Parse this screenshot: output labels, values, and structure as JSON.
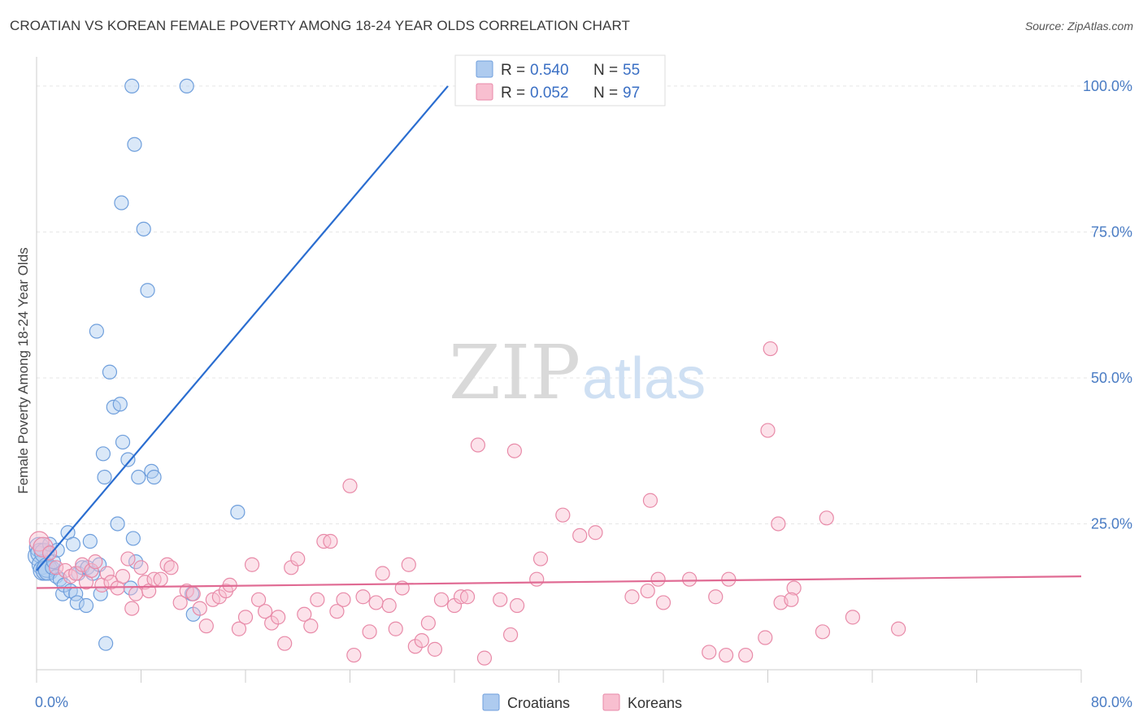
{
  "title": "CROATIAN VS KOREAN FEMALE POVERTY AMONG 18-24 YEAR OLDS CORRELATION CHART",
  "source": "Source: ZipAtlas.com",
  "watermark": {
    "zip": "ZIP",
    "atlas": "atlas"
  },
  "legend_top": {
    "croatians": {
      "r_label": "R = ",
      "r_value": "0.540",
      "n_label": "N = ",
      "n_value": "55"
    },
    "koreans": {
      "r_label": "R = ",
      "r_value": "0.052",
      "n_label": "N = ",
      "n_value": "97"
    }
  },
  "colors": {
    "croatians_fill": "#aecbef",
    "croatians_stroke": "#6f9fdc",
    "croatians_line": "#2a6dd0",
    "koreans_fill": "#f8bfd0",
    "koreans_stroke": "#e88aa8",
    "koreans_line": "#e06a93",
    "grid": "#e6e6e6",
    "tick_label": "#4a7cc4"
  },
  "chart_data": {
    "type": "scatter",
    "title": "CROATIAN VS KOREAN FEMALE POVERTY AMONG 18-24 YEAR OLDS CORRELATION CHART",
    "xlabel": "",
    "ylabel": "Female Poverty Among 18-24 Year Olds",
    "xlim": [
      0,
      80
    ],
    "ylim": [
      0,
      105
    ],
    "x_tick_labels": [
      "0.0%",
      "80.0%"
    ],
    "y_ticks": [
      25,
      50,
      75,
      100
    ],
    "y_tick_labels": [
      "25.0%",
      "50.0%",
      "75.0%",
      "100.0%"
    ],
    "grid": true,
    "legend_placement": "bottom-center",
    "series": [
      {
        "name": "Croatians",
        "trend": {
          "x": [
            0,
            31.5
          ],
          "y": [
            17,
            100
          ]
        },
        "points": [
          [
            0.1,
            19.5
          ],
          [
            0.2,
            21
          ],
          [
            0.3,
            20
          ],
          [
            0.4,
            18
          ],
          [
            0.5,
            17
          ],
          [
            0.6,
            20
          ],
          [
            0.7,
            17
          ],
          [
            0.8,
            17.5
          ],
          [
            0.9,
            17
          ],
          [
            1.0,
            21.5
          ],
          [
            1.2,
            17.5
          ],
          [
            1.3,
            18.5
          ],
          [
            1.5,
            16
          ],
          [
            1.6,
            20.5
          ],
          [
            1.8,
            15.5
          ],
          [
            2.0,
            13
          ],
          [
            2.1,
            14.5
          ],
          [
            2.4,
            23.5
          ],
          [
            2.6,
            13.5
          ],
          [
            2.8,
            21.5
          ],
          [
            3.0,
            13
          ],
          [
            3.1,
            11.5
          ],
          [
            3.2,
            16.5
          ],
          [
            3.5,
            17.5
          ],
          [
            3.8,
            11
          ],
          [
            3.9,
            17.5
          ],
          [
            4.1,
            22
          ],
          [
            4.3,
            16.5
          ],
          [
            4.6,
            58
          ],
          [
            4.8,
            18
          ],
          [
            4.9,
            13
          ],
          [
            5.1,
            37
          ],
          [
            5.2,
            33
          ],
          [
            5.3,
            4.5
          ],
          [
            5.6,
            51
          ],
          [
            5.9,
            45
          ],
          [
            6.2,
            25
          ],
          [
            6.4,
            45.5
          ],
          [
            6.5,
            80
          ],
          [
            6.6,
            39
          ],
          [
            7.0,
            36
          ],
          [
            7.2,
            14
          ],
          [
            7.3,
            100
          ],
          [
            7.4,
            22.5
          ],
          [
            7.5,
            90
          ],
          [
            7.6,
            18.5
          ],
          [
            7.8,
            33
          ],
          [
            8.2,
            75.5
          ],
          [
            8.5,
            65
          ],
          [
            8.8,
            34
          ],
          [
            9.0,
            33
          ],
          [
            11.5,
            100
          ],
          [
            11.9,
            13
          ],
          [
            12.0,
            9.5
          ],
          [
            15.4,
            27
          ]
        ]
      },
      {
        "name": "Koreans",
        "trend": {
          "x": [
            0,
            80
          ],
          "y": [
            14,
            16
          ]
        },
        "points": [
          [
            0.2,
            22
          ],
          [
            0.5,
            21
          ],
          [
            1.0,
            20
          ],
          [
            1.5,
            17.5
          ],
          [
            2.2,
            17
          ],
          [
            2.6,
            16
          ],
          [
            3.0,
            16.5
          ],
          [
            3.5,
            18
          ],
          [
            3.8,
            15
          ],
          [
            4.2,
            17
          ],
          [
            4.5,
            18.5
          ],
          [
            5.0,
            14.5
          ],
          [
            5.4,
            16.5
          ],
          [
            5.7,
            15
          ],
          [
            6.2,
            14
          ],
          [
            6.6,
            16
          ],
          [
            7.0,
            19
          ],
          [
            7.3,
            10.5
          ],
          [
            7.6,
            13
          ],
          [
            8.0,
            17.5
          ],
          [
            8.3,
            15
          ],
          [
            8.6,
            13.5
          ],
          [
            9.0,
            15.5
          ],
          [
            9.5,
            15.5
          ],
          [
            10.0,
            18
          ],
          [
            10.3,
            17.5
          ],
          [
            11.0,
            11.5
          ],
          [
            11.5,
            13.5
          ],
          [
            12.0,
            13
          ],
          [
            12.5,
            10.5
          ],
          [
            13.0,
            7.5
          ],
          [
            13.5,
            12
          ],
          [
            14.0,
            12.5
          ],
          [
            14.5,
            13.5
          ],
          [
            14.8,
            14.5
          ],
          [
            15.5,
            7
          ],
          [
            16.0,
            9
          ],
          [
            16.5,
            18
          ],
          [
            17.0,
            12
          ],
          [
            17.5,
            10
          ],
          [
            18.0,
            8
          ],
          [
            18.5,
            9
          ],
          [
            19.0,
            4.5
          ],
          [
            19.5,
            17.5
          ],
          [
            20.0,
            19
          ],
          [
            20.5,
            9.5
          ],
          [
            21.0,
            7.5
          ],
          [
            21.5,
            12
          ],
          [
            22.0,
            22
          ],
          [
            22.5,
            22
          ],
          [
            23.0,
            10
          ],
          [
            23.5,
            12
          ],
          [
            24.0,
            31.5
          ],
          [
            24.3,
            2.5
          ],
          [
            25.0,
            12.5
          ],
          [
            25.5,
            6.5
          ],
          [
            26.0,
            11.5
          ],
          [
            26.5,
            16.5
          ],
          [
            27.0,
            11
          ],
          [
            27.5,
            7
          ],
          [
            28.0,
            14
          ],
          [
            28.5,
            18
          ],
          [
            29.0,
            4
          ],
          [
            29.5,
            5
          ],
          [
            30.0,
            8
          ],
          [
            30.5,
            3.5
          ],
          [
            31.0,
            12
          ],
          [
            32.0,
            11
          ],
          [
            32.5,
            12.5
          ],
          [
            33.0,
            12.5
          ],
          [
            33.8,
            38.5
          ],
          [
            34.3,
            2
          ],
          [
            35.5,
            12
          ],
          [
            36.3,
            6
          ],
          [
            36.6,
            37.5
          ],
          [
            36.8,
            11
          ],
          [
            38.3,
            15.5
          ],
          [
            38.6,
            19
          ],
          [
            40.3,
            26.5
          ],
          [
            41.6,
            23
          ],
          [
            42.8,
            23.5
          ],
          [
            45.6,
            12.5
          ],
          [
            46.8,
            13.5
          ],
          [
            47.0,
            29
          ],
          [
            47.6,
            15.5
          ],
          [
            48.0,
            11.5
          ],
          [
            50.0,
            15.5
          ],
          [
            51.5,
            3
          ],
          [
            52.0,
            12.5
          ],
          [
            52.8,
            2.5
          ],
          [
            53.0,
            15.5
          ],
          [
            54.3,
            2.5
          ],
          [
            56.2,
            55
          ],
          [
            56.0,
            41
          ],
          [
            56.8,
            25
          ],
          [
            57.0,
            11.5
          ],
          [
            58.0,
            14
          ]
        ]
      }
    ],
    "extra_korean_points": [
      [
        55.8,
        5.5
      ],
      [
        57.8,
        12
      ],
      [
        60.5,
        26
      ],
      [
        60.2,
        6.5
      ],
      [
        62.5,
        9
      ],
      [
        66.0,
        7
      ]
    ]
  }
}
